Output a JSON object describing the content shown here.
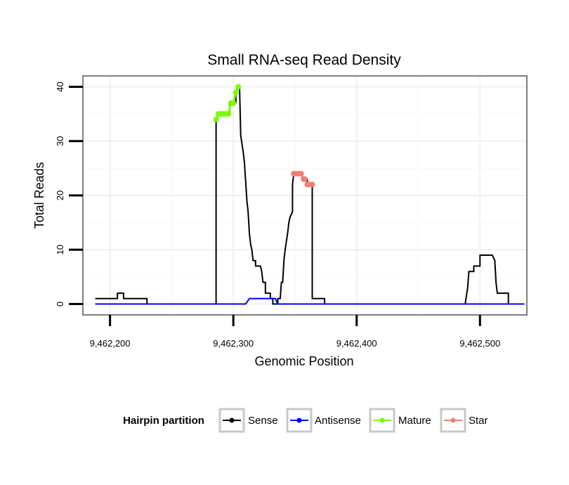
{
  "chart_data": {
    "type": "line",
    "title": "Small RNA-seq Read Density",
    "xlabel": "Genomic Position",
    "ylabel": "Total Reads",
    "xlim": [
      9462178,
      9462538
    ],
    "ylim": [
      -2,
      42
    ],
    "x_ticks": [
      9462200,
      9462300,
      9462400,
      9462500
    ],
    "x_tick_labels": [
      "9,462,200",
      "9,462,300",
      "9,462,400",
      "9,462,500"
    ],
    "y_ticks": [
      0,
      10,
      20,
      30,
      40
    ],
    "y_tick_labels": [
      "0",
      "10",
      "20",
      "30",
      "40"
    ],
    "legend": {
      "title": "Hairpin partition",
      "position": "bottom",
      "entries": [
        "Sense",
        "Antisense",
        "Mature",
        "Star"
      ]
    },
    "series": [
      {
        "name": "Sense",
        "color": "#000000",
        "points": [
          [
            9462188,
            1
          ],
          [
            9462206,
            1
          ],
          [
            9462206,
            2
          ],
          [
            9462211,
            2
          ],
          [
            9462211,
            1
          ],
          [
            9462230,
            1
          ],
          [
            9462230,
            0
          ],
          [
            9462286,
            0
          ],
          [
            9462286,
            34
          ],
          [
            9462288,
            35
          ],
          [
            9462297,
            35
          ],
          [
            9462297,
            37
          ],
          [
            9462302,
            37
          ],
          [
            9462302,
            39
          ],
          [
            9462304,
            40
          ],
          [
            9462305,
            40
          ],
          [
            9462306,
            31
          ],
          [
            9462308,
            28
          ],
          [
            9462309,
            26
          ],
          [
            9462311,
            19
          ],
          [
            9462312,
            17
          ],
          [
            9462313,
            13
          ],
          [
            9462314,
            11
          ],
          [
            9462315,
            10
          ],
          [
            9462316,
            8
          ],
          [
            9462318,
            8
          ],
          [
            9462318,
            7
          ],
          [
            9462322,
            7
          ],
          [
            9462323,
            6
          ],
          [
            9462324,
            4
          ],
          [
            9462326,
            4
          ],
          [
            9462326,
            2
          ],
          [
            9462330,
            2
          ],
          [
            9462330,
            1
          ],
          [
            9462332,
            1
          ],
          [
            9462332,
            0
          ],
          [
            9462336,
            0
          ],
          [
            9462336,
            1
          ],
          [
            9462338,
            1
          ],
          [
            9462339,
            4
          ],
          [
            9462340,
            4
          ],
          [
            9462341,
            8
          ],
          [
            9462342,
            10
          ],
          [
            9462344,
            13
          ],
          [
            9462345,
            15
          ],
          [
            9462346,
            16
          ],
          [
            9462348,
            17
          ],
          [
            9462348,
            22
          ],
          [
            9462349,
            24
          ],
          [
            9462356,
            24
          ],
          [
            9462356,
            23
          ],
          [
            9462360,
            23
          ],
          [
            9462360,
            22
          ],
          [
            9462364,
            22
          ],
          [
            9462364,
            1
          ],
          [
            9462374,
            1
          ],
          [
            9462374,
            0
          ],
          [
            9462488,
            0
          ],
          [
            9462490,
            3
          ],
          [
            9462491,
            6
          ],
          [
            9462495,
            6
          ],
          [
            9462495,
            7
          ],
          [
            9462500,
            7
          ],
          [
            9462500,
            9
          ],
          [
            9462510,
            9
          ],
          [
            9462512,
            8
          ],
          [
            9462513,
            4
          ],
          [
            9462514,
            2
          ],
          [
            9462523,
            2
          ],
          [
            9462523,
            0
          ],
          [
            9462536,
            0
          ]
        ]
      },
      {
        "name": "Antisense",
        "color": "#0000ff",
        "points": [
          [
            9462188,
            0
          ],
          [
            9462310,
            0
          ],
          [
            9462313,
            1
          ],
          [
            9462334,
            1
          ],
          [
            9462336,
            0
          ],
          [
            9462536,
            0
          ]
        ]
      },
      {
        "name": "Mature",
        "color": "#7cfc00",
        "points": [
          [
            9462286,
            34
          ],
          [
            9462288,
            35
          ],
          [
            9462290,
            35
          ],
          [
            9462292,
            35
          ],
          [
            9462294,
            35
          ],
          [
            9462296,
            35
          ],
          [
            9462298,
            37
          ],
          [
            9462300,
            37
          ],
          [
            9462302,
            39
          ],
          [
            9462304,
            40
          ]
        ]
      },
      {
        "name": "Star",
        "color": "#f08070",
        "points": [
          [
            9462349,
            24
          ],
          [
            9462351,
            24
          ],
          [
            9462353,
            24
          ],
          [
            9462355,
            24
          ],
          [
            9462357,
            23
          ],
          [
            9462358,
            23
          ],
          [
            9462360,
            22
          ],
          [
            9462362,
            22
          ],
          [
            9462364,
            22
          ]
        ]
      }
    ]
  }
}
